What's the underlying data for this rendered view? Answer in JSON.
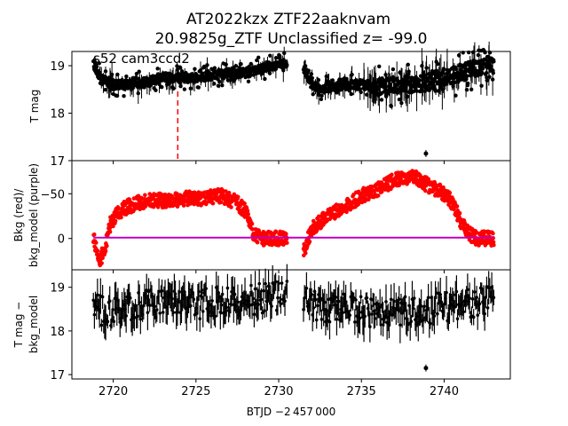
{
  "figure": {
    "title_line1": "AT2022kzx  ZTF22aaknvam",
    "title_line2": "20.9825g_ZTF Unclassified z= -99.0",
    "annotation": "s52 cam3ccd2",
    "xlabel": "BTJD −2 457 000"
  },
  "chart_data": [
    {
      "type": "scatter",
      "panel": "top",
      "ylabel": "T mag",
      "xlim": [
        2717.5,
        2744.0
      ],
      "ylim": [
        19.3,
        17.0
      ],
      "inverted_y": true,
      "yticks": [
        "17",
        "18",
        "19"
      ],
      "ytick_values": [
        17,
        18,
        19
      ],
      "marker_line_x": 2723.9,
      "marker_line_color": "#ff0000",
      "segments": [
        {
          "x": [
            2718.8,
            2719.3,
            2720.0,
            2721.0,
            2722.0,
            2723.0,
            2724.0,
            2725.0,
            2726.0,
            2727.0,
            2728.0,
            2729.0,
            2730.0,
            2730.5
          ],
          "y": [
            19.05,
            18.7,
            18.6,
            18.6,
            18.65,
            18.75,
            18.75,
            18.75,
            18.8,
            18.85,
            18.85,
            18.95,
            19.0,
            19.05
          ]
        },
        {
          "x": [
            2731.5,
            2732.0,
            2732.5,
            2733.0,
            2734.0,
            2735.0,
            2736.0,
            2737.0,
            2738.0,
            2739.0,
            2740.0,
            2741.0,
            2742.0,
            2743.0
          ],
          "y": [
            19.0,
            18.6,
            18.5,
            18.55,
            18.6,
            18.6,
            18.55,
            18.6,
            18.6,
            18.65,
            18.75,
            18.85,
            18.95,
            19.05
          ]
        }
      ],
      "outlier": {
        "x": 2738.9,
        "y": 17.15
      },
      "color": "#000000"
    },
    {
      "type": "scatter",
      "panel": "middle",
      "ylabel_line1": "Bkg (red)/",
      "ylabel_line2": "bkg_model (purple)",
      "xlim": [
        2717.5,
        2744.0
      ],
      "ylim": [
        -87,
        35
      ],
      "yticks": [
        "0",
        "−50"
      ],
      "ytick_values": [
        0,
        -50
      ],
      "bkg_color": "#ff0000",
      "model_color": "#bf00bf",
      "bkg_segments": [
        {
          "x": [
            2718.8,
            2719.2,
            2719.5,
            2719.8,
            2720.2,
            2720.8,
            2721.5,
            2722.5,
            2723.5,
            2724.5,
            2725.5,
            2726.5,
            2727.5,
            2728.0,
            2728.5,
            2729.0,
            2729.5,
            2730.0,
            2730.5
          ],
          "y": [
            0,
            25,
            10,
            -15,
            -28,
            -35,
            -40,
            -43,
            -42,
            -45,
            -45,
            -48,
            -40,
            -30,
            -5,
            0,
            0,
            0,
            0
          ]
        },
        {
          "x": [
            2731.5,
            2731.8,
            2732.0,
            2732.5,
            2733.0,
            2734.0,
            2735.0,
            2736.0,
            2737.0,
            2738.0,
            2739.0,
            2740.0,
            2740.5,
            2741.0,
            2741.5,
            2742.0,
            2743.0
          ],
          "y": [
            15,
            0,
            -10,
            -18,
            -25,
            -35,
            -48,
            -55,
            -65,
            -70,
            -60,
            -50,
            -40,
            -20,
            -5,
            0,
            0
          ]
        }
      ],
      "model_x": [
        2718.8,
        2743.0
      ],
      "model_y": [
        -1,
        -1
      ]
    },
    {
      "type": "scatter",
      "panel": "bottom",
      "ylabel_line1": "T mag −",
      "ylabel_line2": "bkg_model",
      "xlim": [
        2717.5,
        2744.0
      ],
      "ylim": [
        19.4,
        16.9
      ],
      "inverted_y": true,
      "yticks": [
        "17",
        "18",
        "19"
      ],
      "ytick_values": [
        17,
        18,
        19
      ],
      "xticks": [
        "2720",
        "2725",
        "2730",
        "2735",
        "2740"
      ],
      "xtick_values": [
        2720,
        2725,
        2730,
        2735,
        2740
      ],
      "outlier": {
        "x": 2738.9,
        "y": 17.15
      },
      "segments": [
        {
          "x": [
            2718.8,
            2719.5,
            2720.2,
            2721.0,
            2722.0,
            2723.0,
            2724.0,
            2725.0,
            2726.0,
            2727.0,
            2728.0,
            2729.0,
            2730.0,
            2730.5
          ],
          "y": [
            18.5,
            18.45,
            18.45,
            18.5,
            18.6,
            18.65,
            18.6,
            18.6,
            18.65,
            18.7,
            18.7,
            18.75,
            18.8,
            18.85
          ]
        },
        {
          "x": [
            2731.5,
            2732.0,
            2733.0,
            2734.0,
            2735.0,
            2736.0,
            2737.0,
            2738.0,
            2739.0,
            2740.0,
            2741.0,
            2742.0,
            2743.0
          ],
          "y": [
            18.75,
            18.6,
            18.5,
            18.5,
            18.45,
            18.4,
            18.4,
            18.45,
            18.5,
            18.55,
            18.6,
            18.65,
            18.7
          ]
        }
      ],
      "color": "#000000"
    }
  ]
}
